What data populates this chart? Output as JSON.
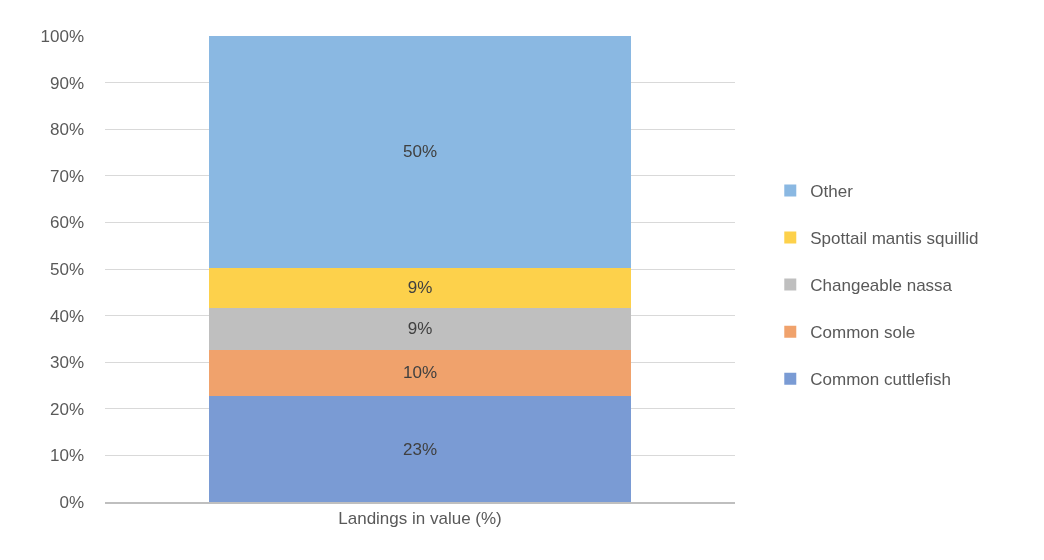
{
  "chart_data": {
    "type": "bar",
    "stacked": true,
    "categories": [
      "Landings in value (%)"
    ],
    "series": [
      {
        "name": "Common cuttlefish",
        "color": "#7a9bd4",
        "values": [
          22.7
        ],
        "value_labels": [
          "23%"
        ]
      },
      {
        "name": "Common sole",
        "color": "#f0a26c",
        "values": [
          10.0
        ],
        "value_labels": [
          "10%"
        ]
      },
      {
        "name": "Changeable nassa",
        "color": "#bfbfbf",
        "values": [
          9.0
        ],
        "value_labels": [
          "9%"
        ]
      },
      {
        "name": "Spottail mantis squillid",
        "color": "#fdd14b",
        "values": [
          8.6
        ],
        "value_labels": [
          "9%"
        ]
      },
      {
        "name": "Other",
        "color": "#8ab8e2",
        "values": [
          49.7
        ],
        "value_labels": [
          "50%"
        ]
      }
    ],
    "ylim": [
      0,
      100
    ],
    "yticks": [
      {
        "value": 0,
        "label": "0%"
      },
      {
        "value": 10,
        "label": "10%"
      },
      {
        "value": 20,
        "label": "20%"
      },
      {
        "value": 30,
        "label": "30%"
      },
      {
        "value": 40,
        "label": "40%"
      },
      {
        "value": 50,
        "label": "50%"
      },
      {
        "value": 60,
        "label": "60%"
      },
      {
        "value": 70,
        "label": "70%"
      },
      {
        "value": 80,
        "label": "80%"
      },
      {
        "value": 90,
        "label": "90%"
      },
      {
        "value": 100,
        "label": "100%"
      }
    ],
    "grid": "y",
    "legend": "right"
  }
}
